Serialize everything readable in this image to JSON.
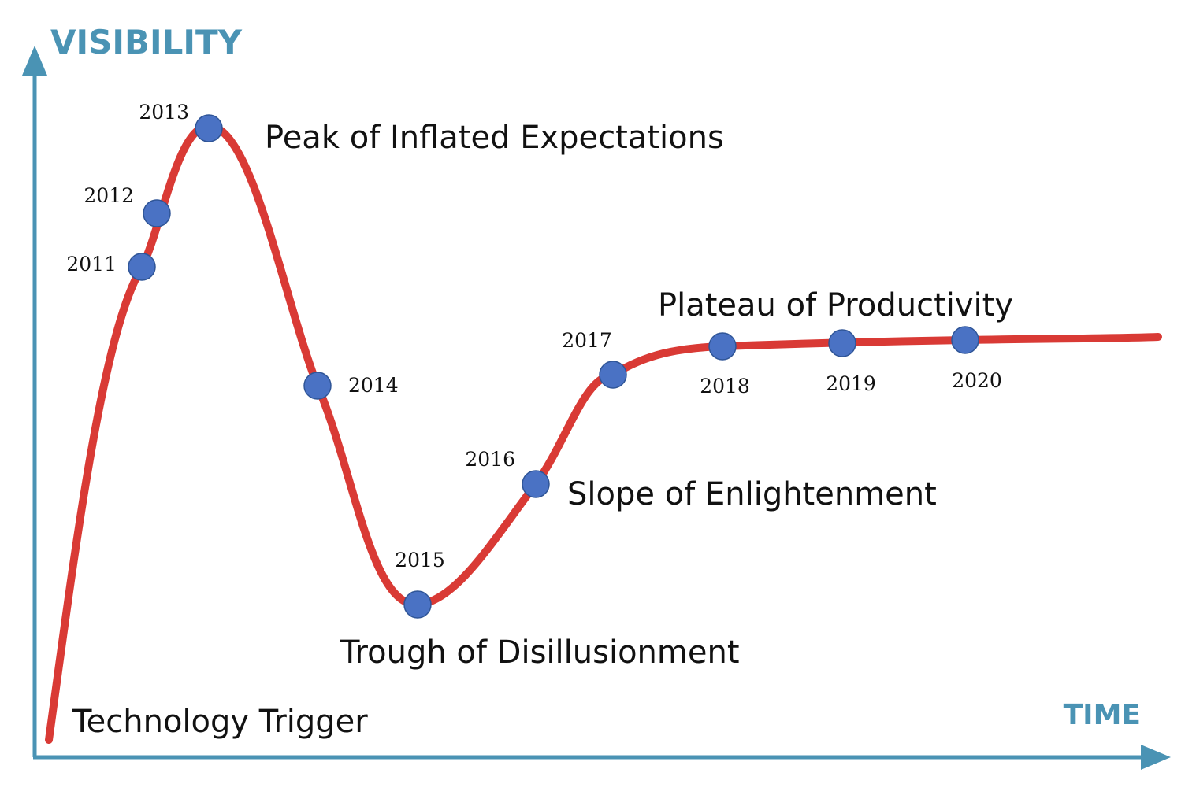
{
  "axes": {
    "y_title": "VISIBILITY",
    "x_title": "TIME",
    "color": "#4a93b4"
  },
  "curve": {
    "color": "#d93a35"
  },
  "marker_color": "#4a72c4",
  "phases": {
    "technology_trigger": "Technology Trigger",
    "peak": "Peak of Inflated Expectations",
    "trough": "Trough of Disillusionment",
    "slope": "Slope of Enlightenment",
    "plateau": "Plateau of Productivity"
  },
  "years": {
    "y2011": "2011",
    "y2012": "2012",
    "y2013": "2013",
    "y2014": "2014",
    "y2015": "2015",
    "y2016": "2016",
    "y2017": "2017",
    "y2018": "2018",
    "y2019": "2019",
    "y2020": "2020"
  }
}
